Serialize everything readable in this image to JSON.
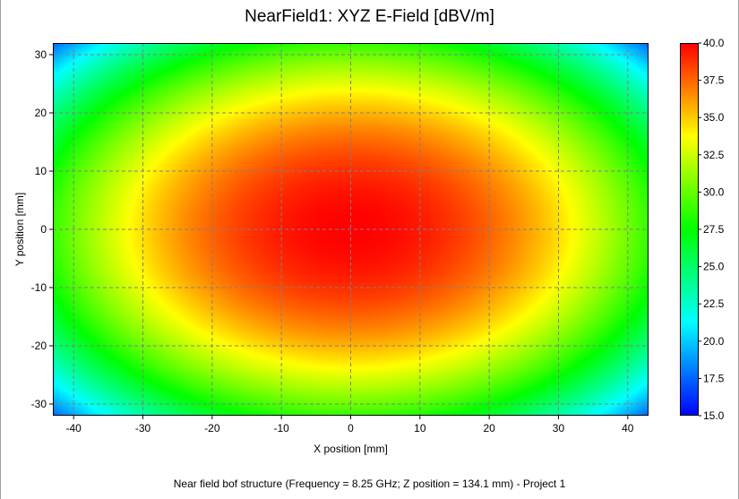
{
  "chart_data": {
    "type": "heatmap",
    "title": "NearField1: XYZ E-Field [dBV/m]",
    "xlabel": "X position [mm]",
    "ylabel": "Y position [mm]",
    "footer": "Near field bof structure (Frequency = 8.25 GHz; Z position = 134.1 mm) - Project 1",
    "xlim": [
      -43,
      43
    ],
    "ylim": [
      -32,
      32
    ],
    "xticks": [
      -40,
      -30,
      -20,
      -10,
      0,
      10,
      20,
      30,
      40
    ],
    "yticks": [
      -30,
      -20,
      -10,
      0,
      10,
      20,
      30
    ],
    "grid": true,
    "colorbar": {
      "min": 15.0,
      "max": 40.0,
      "ticks": [
        "15.0",
        "17.5",
        "20.0",
        "22.5",
        "25.0",
        "27.5",
        "30.0",
        "32.5",
        "35.0",
        "37.5",
        "40.0"
      ],
      "colors": [
        "#0000ff",
        "#00ffff",
        "#00ff00",
        "#ffff00",
        "#ff0000"
      ]
    },
    "field": {
      "center_x": 0,
      "center_y": 0,
      "peak": 40.0,
      "corner_value": 17.5
    }
  }
}
